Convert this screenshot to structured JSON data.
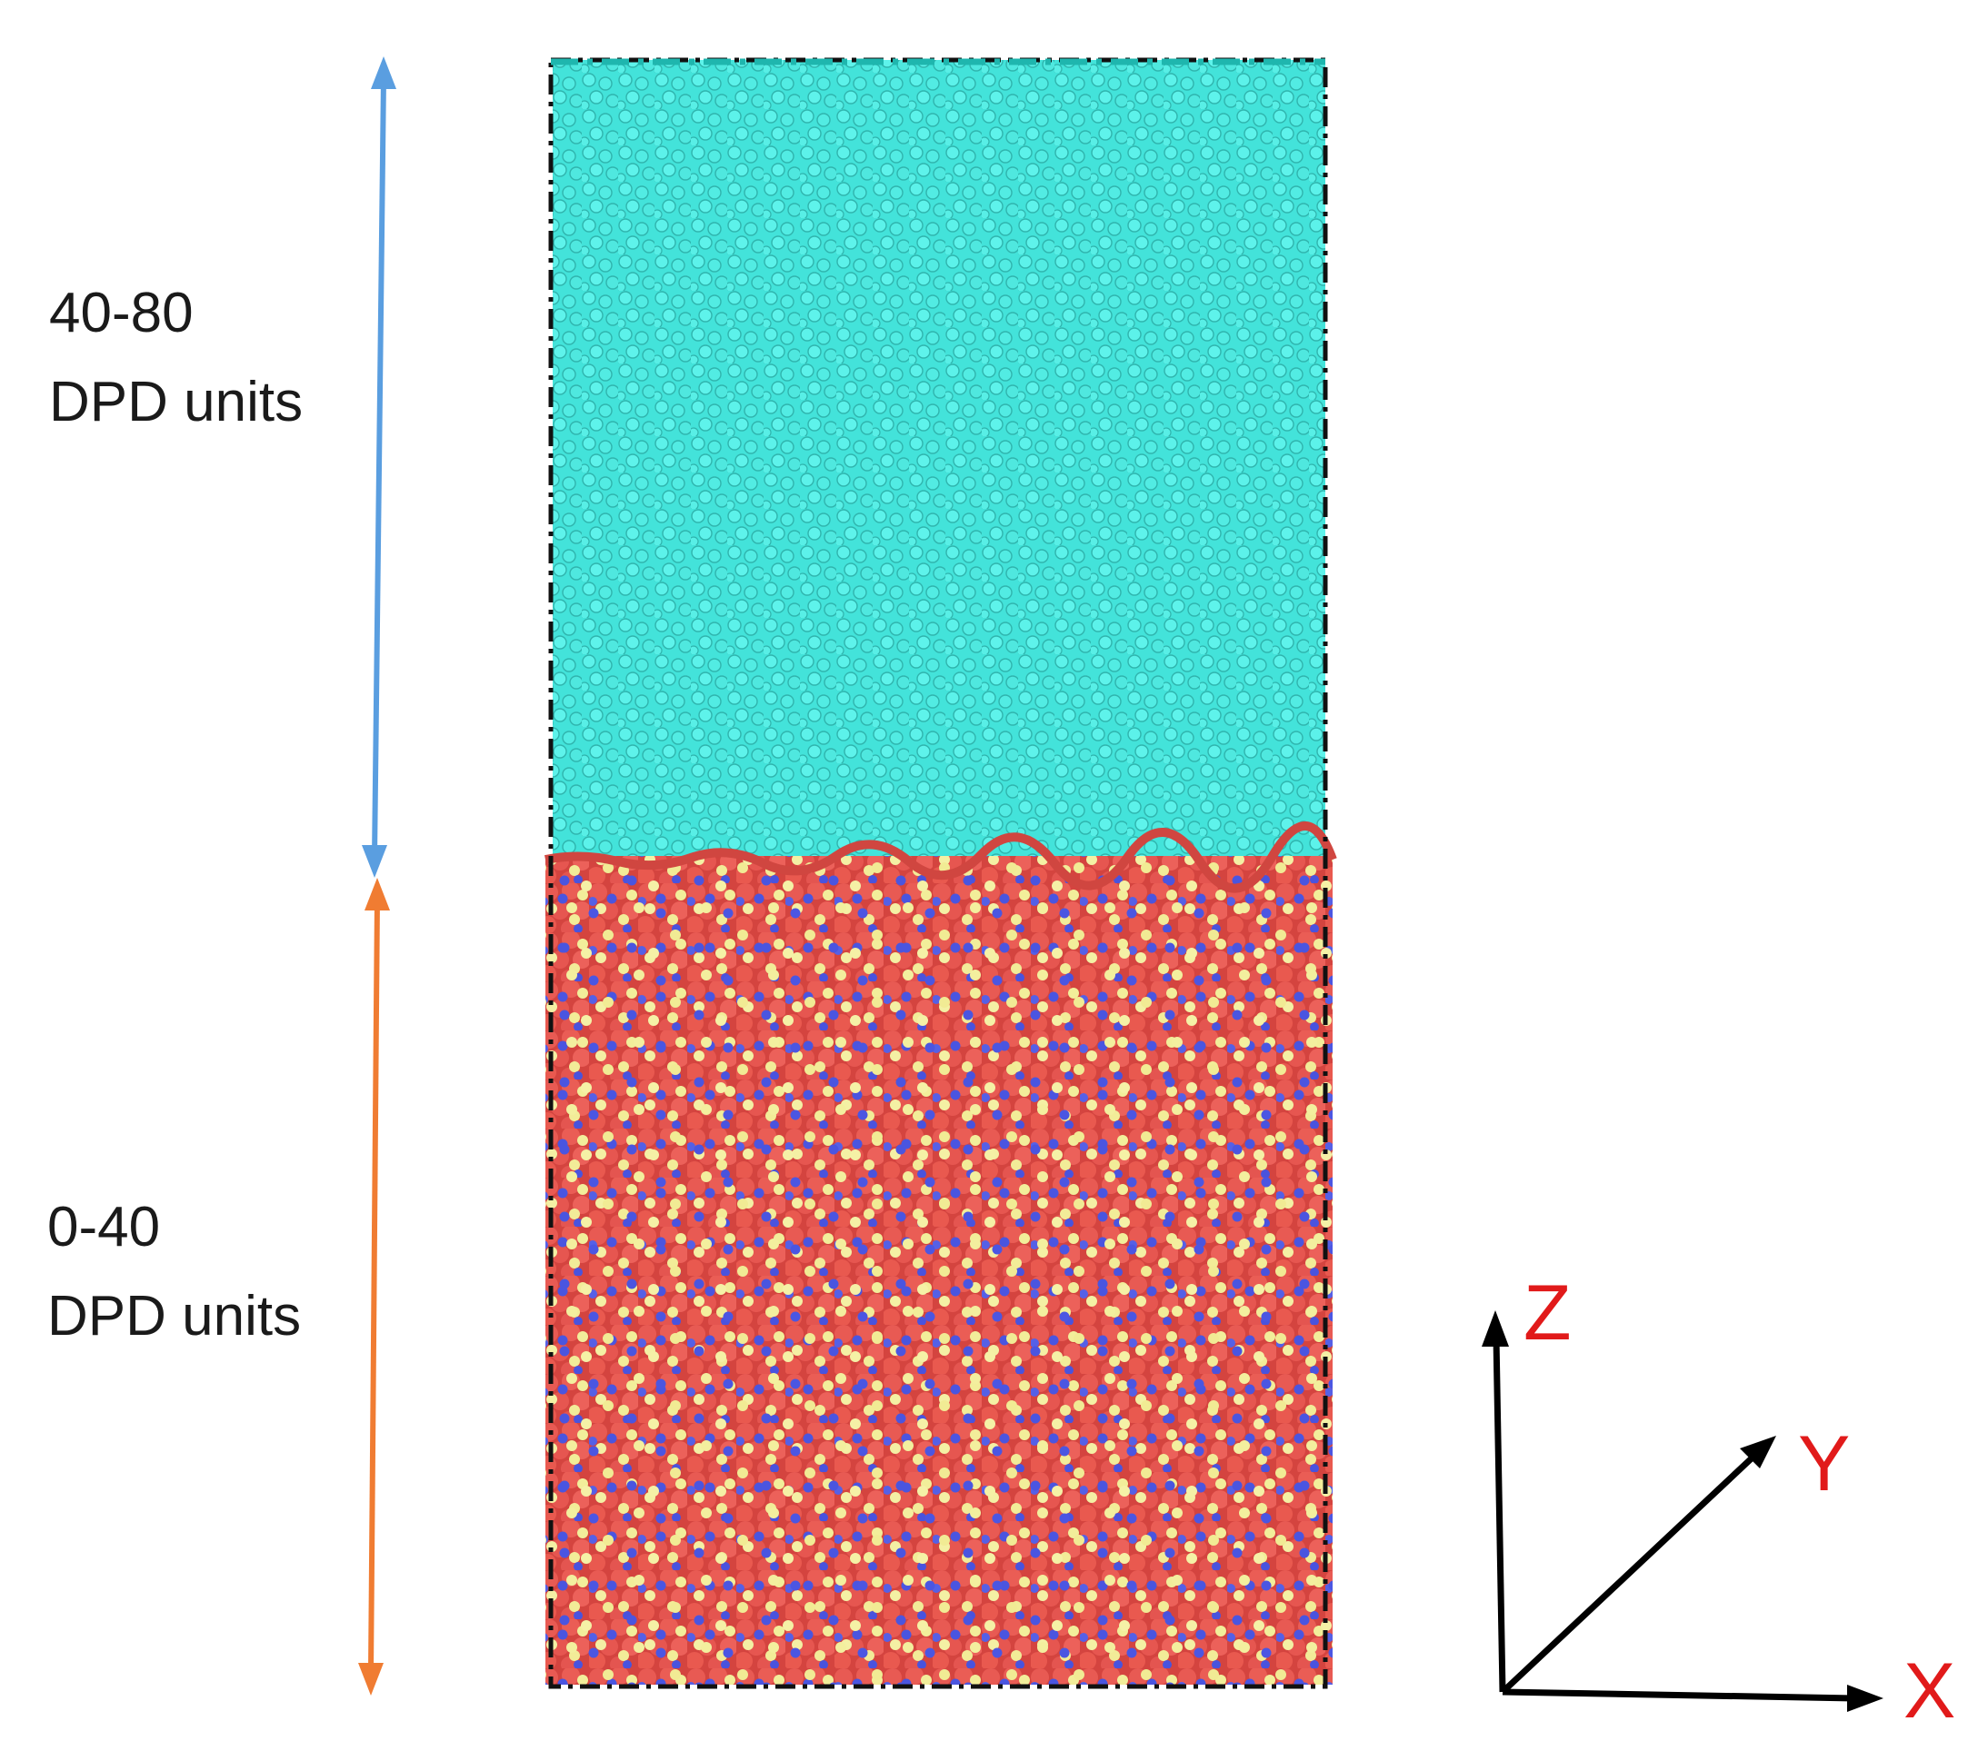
{
  "regions": [
    {
      "range": "40-80",
      "units": "DPD units"
    },
    {
      "range": "0-40",
      "units": "DPD units"
    }
  ],
  "axes": {
    "z": "Z",
    "y": "Y",
    "x": "X"
  },
  "colors": {
    "upper_phase": "#3ee6dc",
    "lower_phase": "#e2504a",
    "bead_yellow": "#f2ee9a",
    "bead_blue": "#4a55e0",
    "arrow_upper": "#5a9ee0",
    "arrow_lower": "#f07c32",
    "axis_arrows": "#000000",
    "axis_letters": "#e11a1a"
  },
  "icons": [
    "double-arrow-icon",
    "axis-arrow-icon"
  ]
}
